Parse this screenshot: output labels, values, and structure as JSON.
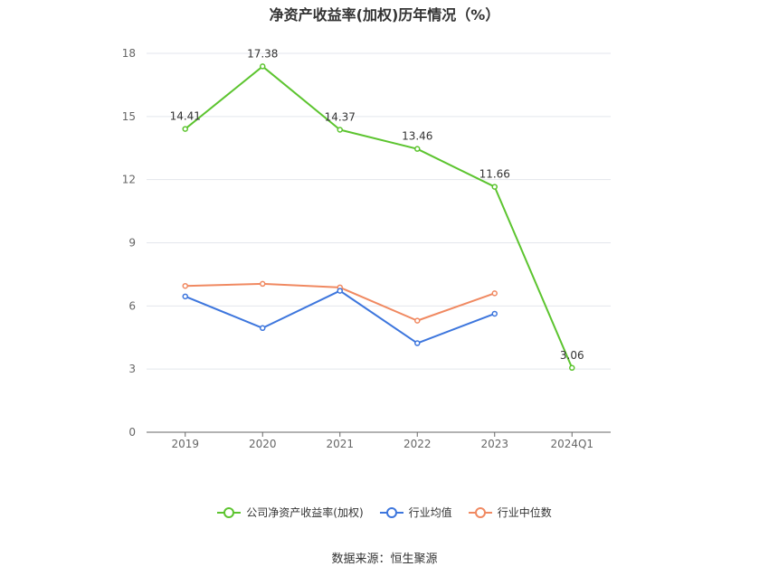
{
  "chart_data": {
    "type": "line",
    "title": "净资产收益率(加权)历年情况（%）",
    "categories": [
      "2019",
      "2020",
      "2021",
      "2022",
      "2023",
      "2024Q1"
    ],
    "ylim": [
      0,
      18
    ],
    "yticks": [
      0,
      3,
      6,
      9,
      12,
      15,
      18
    ],
    "grid": true,
    "legend_position": "bottom",
    "series": [
      {
        "name": "公司净资产收益率(加权)",
        "color": "#5cc42f",
        "values": [
          14.41,
          17.38,
          14.37,
          13.46,
          11.66,
          3.06
        ],
        "labels": [
          "14.41",
          "17.38",
          "14.37",
          "13.46",
          "11.66",
          "3.06"
        ]
      },
      {
        "name": "行业均值",
        "color": "#3d76dd",
        "values": [
          6.45,
          4.95,
          6.72,
          4.23,
          5.63,
          null
        ]
      },
      {
        "name": "行业中位数",
        "color": "#f08961",
        "values": [
          6.95,
          7.05,
          6.88,
          5.3,
          6.6,
          null
        ]
      }
    ]
  },
  "source": "数据来源：恒生聚源"
}
